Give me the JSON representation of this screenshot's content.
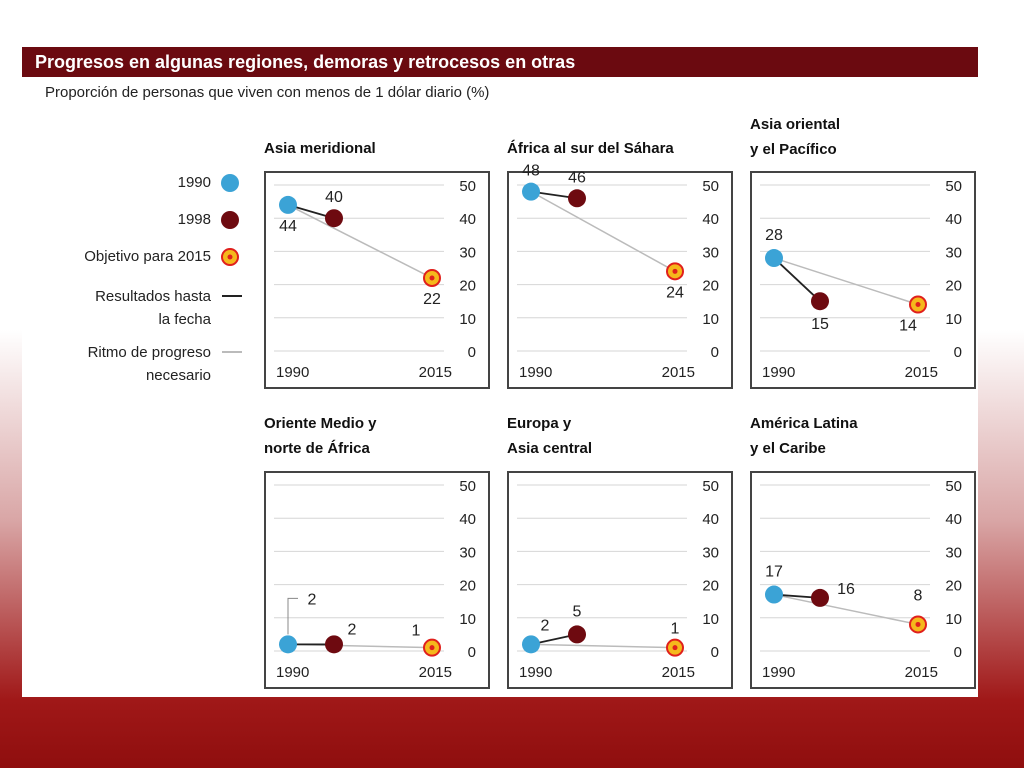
{
  "header": {
    "title": "Progresos en algunas regiones, demoras y retrocesos en otras",
    "subtitle": "Proporción de personas que viven con menos de 1 dólar diario (%)"
  },
  "legend": {
    "item_1990": "1990",
    "item_1998": "1998",
    "item_target": "Objetivo para 2015",
    "item_results_line1": "Resultados hasta",
    "item_results_line2": "la fecha",
    "item_needed_line1": "Ritmo de progreso",
    "item_needed_line2": "necesario"
  },
  "colors": {
    "c1990": "#3ba3d6",
    "c1998": "#6e0a10",
    "target_fill": "#f5b81c",
    "target_ring": "#e0201c",
    "results_line": "#222222",
    "needed_line": "#bbbbbb",
    "gridline": "#d6d6d6"
  },
  "chart_data": [
    {
      "type": "line",
      "title": "Asia meridional",
      "xlabel": "",
      "ylabel": "",
      "ylim": [
        0,
        50
      ],
      "yticks": [
        0,
        10,
        20,
        30,
        40,
        50
      ],
      "x_tick_labels": [
        "1990",
        "2015"
      ],
      "points": {
        "1990": 44,
        "1998": 40,
        "2015": 22
      },
      "labels": {
        "1990": "44",
        "1998": "40",
        "2015": "22"
      }
    },
    {
      "type": "line",
      "title": "África al sur del Sáhara",
      "xlabel": "",
      "ylabel": "",
      "ylim": [
        0,
        50
      ],
      "yticks": [
        0,
        10,
        20,
        30,
        40,
        50
      ],
      "x_tick_labels": [
        "1990",
        "2015"
      ],
      "points": {
        "1990": 48,
        "1998": 46,
        "2015": 24
      },
      "labels": {
        "1990": "48",
        "1998": "46",
        "2015": "24"
      }
    },
    {
      "type": "line",
      "title": "Asia oriental\ny el Pacífico",
      "xlabel": "",
      "ylabel": "",
      "ylim": [
        0,
        50
      ],
      "yticks": [
        0,
        10,
        20,
        30,
        40,
        50
      ],
      "x_tick_labels": [
        "1990",
        "2015"
      ],
      "points": {
        "1990": 28,
        "1998": 15,
        "2015": 14
      },
      "labels": {
        "1990": "28",
        "1998": "15",
        "2015": "14"
      }
    },
    {
      "type": "line",
      "title": "Oriente Medio y\nnorte de África",
      "xlabel": "",
      "ylabel": "",
      "ylim": [
        0,
        50
      ],
      "yticks": [
        0,
        10,
        20,
        30,
        40,
        50
      ],
      "x_tick_labels": [
        "1990",
        "2015"
      ],
      "points": {
        "1990": 2,
        "1998": 2,
        "2015": 1
      },
      "labels": {
        "1990": "2",
        "1998": "2",
        "2015": "1"
      }
    },
    {
      "type": "line",
      "title": "Europa y\nAsia central",
      "xlabel": "",
      "ylabel": "",
      "ylim": [
        0,
        50
      ],
      "yticks": [
        0,
        10,
        20,
        30,
        40,
        50
      ],
      "x_tick_labels": [
        "1990",
        "2015"
      ],
      "points": {
        "1990": 2,
        "1998": 5,
        "2015": 1
      },
      "labels": {
        "1990": "2",
        "1998": "5",
        "2015": "1"
      }
    },
    {
      "type": "line",
      "title": "América Latina\ny el Caribe",
      "xlabel": "",
      "ylabel": "",
      "ylim": [
        0,
        50
      ],
      "yticks": [
        0,
        10,
        20,
        30,
        40,
        50
      ],
      "x_tick_labels": [
        "1990",
        "2015"
      ],
      "points": {
        "1990": 17,
        "1998": 16,
        "2015": 8
      },
      "labels": {
        "1990": "17",
        "1998": "16",
        "2015": "8"
      }
    }
  ]
}
